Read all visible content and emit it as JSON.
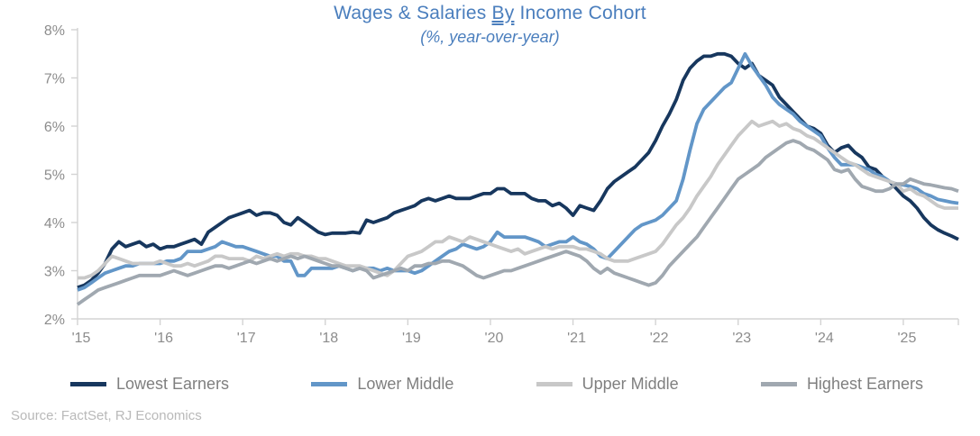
{
  "title": {
    "prefix": "Wages & Salaries ",
    "underlined": "By",
    "suffix": " Income Cohort"
  },
  "subtitle": "(%, year-over-year)",
  "source": "Source: FactSet, RJ Economics",
  "colors": {
    "title_text": "#4a7ebd",
    "axis_label": "#8c8c8c",
    "axis_line": "#d3d3d3",
    "legend_text": "#7f7f7f",
    "source_text": "#b9b9b9"
  },
  "chart_data": {
    "type": "line",
    "title": "Wages & Salaries By Income Cohort",
    "subtitle": "(%, year-over-year)",
    "x_start": "2015-01",
    "x_frequency": "monthly",
    "x_tick_labels": [
      "'15",
      "'16",
      "'17",
      "'18",
      "'19",
      "'20",
      "'21",
      "'22",
      "'23",
      "'24",
      "'25"
    ],
    "y_tick_labels": [
      "2%",
      "3%",
      "4%",
      "5%",
      "6%",
      "7%",
      "8%"
    ],
    "ylim": [
      2,
      8
    ],
    "grid": false,
    "legend_position": "bottom",
    "series": [
      {
        "name": "Lowest Earners",
        "color": "#17375e",
        "values": [
          2.65,
          2.7,
          2.8,
          2.95,
          3.15,
          3.45,
          3.6,
          3.5,
          3.55,
          3.6,
          3.5,
          3.55,
          3.45,
          3.5,
          3.5,
          3.55,
          3.6,
          3.65,
          3.55,
          3.8,
          3.9,
          4.0,
          4.1,
          4.15,
          4.2,
          4.25,
          4.15,
          4.2,
          4.2,
          4.15,
          4.0,
          3.95,
          4.1,
          4.0,
          3.9,
          3.8,
          3.75,
          3.78,
          3.78,
          3.78,
          3.8,
          3.78,
          4.05,
          4.0,
          4.05,
          4.1,
          4.2,
          4.25,
          4.3,
          4.35,
          4.45,
          4.5,
          4.45,
          4.5,
          4.55,
          4.5,
          4.5,
          4.5,
          4.55,
          4.6,
          4.6,
          4.7,
          4.7,
          4.6,
          4.6,
          4.6,
          4.5,
          4.45,
          4.45,
          4.35,
          4.4,
          4.3,
          4.15,
          4.35,
          4.3,
          4.25,
          4.45,
          4.7,
          4.85,
          4.95,
          5.05,
          5.15,
          5.3,
          5.45,
          5.7,
          6.0,
          6.25,
          6.55,
          6.95,
          7.2,
          7.35,
          7.45,
          7.45,
          7.5,
          7.5,
          7.45,
          7.3,
          7.2,
          7.3,
          7.05,
          6.95,
          6.85,
          6.6,
          6.45,
          6.3,
          6.15,
          6.0,
          5.95,
          5.85,
          5.6,
          5.45,
          5.55,
          5.6,
          5.45,
          5.35,
          5.15,
          5.1,
          4.95,
          4.85,
          4.7,
          4.55,
          4.45,
          4.3,
          4.1,
          3.95,
          3.85,
          3.78,
          3.72,
          3.65
        ]
      },
      {
        "name": "Lower Middle",
        "color": "#6296c8",
        "values": [
          2.6,
          2.65,
          2.75,
          2.85,
          2.95,
          3.0,
          3.05,
          3.1,
          3.1,
          3.15,
          3.15,
          3.15,
          3.15,
          3.2,
          3.2,
          3.25,
          3.4,
          3.4,
          3.4,
          3.45,
          3.5,
          3.6,
          3.55,
          3.5,
          3.5,
          3.45,
          3.4,
          3.35,
          3.3,
          3.3,
          3.2,
          3.2,
          2.9,
          2.9,
          3.05,
          3.05,
          3.05,
          3.05,
          3.1,
          3.05,
          3.0,
          3.05,
          3.05,
          3.05,
          3.0,
          3.05,
          3.0,
          3.0,
          3.0,
          2.95,
          3.0,
          3.1,
          3.2,
          3.3,
          3.4,
          3.45,
          3.55,
          3.5,
          3.45,
          3.5,
          3.6,
          3.8,
          3.7,
          3.7,
          3.7,
          3.7,
          3.65,
          3.6,
          3.5,
          3.55,
          3.6,
          3.6,
          3.7,
          3.6,
          3.55,
          3.45,
          3.3,
          3.25,
          3.4,
          3.55,
          3.7,
          3.85,
          3.95,
          4.0,
          4.05,
          4.15,
          4.3,
          4.45,
          4.9,
          5.5,
          6.05,
          6.35,
          6.5,
          6.65,
          6.8,
          6.9,
          7.2,
          7.5,
          7.25,
          7.05,
          6.85,
          6.6,
          6.45,
          6.35,
          6.25,
          6.1,
          6.0,
          5.9,
          5.8,
          5.55,
          5.35,
          5.2,
          5.2,
          5.2,
          5.15,
          5.1,
          5.0,
          4.95,
          4.85,
          4.8,
          4.78,
          4.75,
          4.7,
          4.6,
          4.55,
          4.48,
          4.45,
          4.42,
          4.4
        ]
      },
      {
        "name": "Upper Middle",
        "color": "#c8c8c8",
        "values": [
          2.85,
          2.85,
          2.9,
          3.0,
          3.15,
          3.3,
          3.25,
          3.2,
          3.15,
          3.15,
          3.15,
          3.15,
          3.2,
          3.15,
          3.1,
          3.1,
          3.15,
          3.1,
          3.15,
          3.2,
          3.3,
          3.3,
          3.25,
          3.25,
          3.25,
          3.2,
          3.3,
          3.25,
          3.3,
          3.35,
          3.3,
          3.35,
          3.35,
          3.3,
          3.3,
          3.25,
          3.25,
          3.2,
          3.15,
          3.1,
          3.1,
          3.1,
          3.05,
          3.0,
          2.95,
          2.9,
          3.0,
          3.15,
          3.3,
          3.35,
          3.4,
          3.5,
          3.6,
          3.6,
          3.7,
          3.65,
          3.6,
          3.7,
          3.65,
          3.6,
          3.55,
          3.5,
          3.45,
          3.4,
          3.45,
          3.35,
          3.4,
          3.45,
          3.5,
          3.45,
          3.5,
          3.5,
          3.5,
          3.45,
          3.45,
          3.4,
          3.35,
          3.25,
          3.2,
          3.2,
          3.2,
          3.25,
          3.3,
          3.35,
          3.4,
          3.55,
          3.75,
          3.95,
          4.1,
          4.3,
          4.55,
          4.75,
          4.95,
          5.2,
          5.4,
          5.6,
          5.8,
          5.95,
          6.1,
          6.0,
          6.05,
          6.1,
          6.0,
          6.05,
          5.95,
          5.9,
          5.8,
          5.75,
          5.65,
          5.55,
          5.45,
          5.35,
          5.25,
          5.2,
          5.1,
          5.0,
          4.95,
          4.9,
          4.85,
          4.8,
          4.65,
          4.7,
          4.6,
          4.55,
          4.45,
          4.35,
          4.3,
          4.3,
          4.3
        ]
      },
      {
        "name": "Highest Earners",
        "color": "#a0a8b0",
        "values": [
          2.3,
          2.4,
          2.5,
          2.6,
          2.65,
          2.7,
          2.75,
          2.8,
          2.85,
          2.9,
          2.9,
          2.9,
          2.9,
          2.95,
          3.0,
          2.95,
          2.9,
          2.95,
          3.0,
          3.05,
          3.1,
          3.1,
          3.05,
          3.1,
          3.15,
          3.2,
          3.15,
          3.2,
          3.25,
          3.2,
          3.25,
          3.3,
          3.25,
          3.3,
          3.25,
          3.2,
          3.15,
          3.1,
          3.1,
          3.05,
          3.0,
          3.05,
          3.0,
          2.85,
          2.9,
          2.95,
          3.0,
          3.05,
          3.0,
          3.1,
          3.1,
          3.15,
          3.15,
          3.2,
          3.2,
          3.15,
          3.1,
          3.0,
          2.9,
          2.85,
          2.9,
          2.95,
          3.0,
          3.0,
          3.05,
          3.1,
          3.15,
          3.2,
          3.25,
          3.3,
          3.35,
          3.4,
          3.35,
          3.3,
          3.2,
          3.05,
          2.95,
          3.05,
          2.95,
          2.9,
          2.85,
          2.8,
          2.75,
          2.7,
          2.75,
          2.9,
          3.1,
          3.25,
          3.4,
          3.55,
          3.7,
          3.9,
          4.1,
          4.3,
          4.5,
          4.7,
          4.9,
          5.0,
          5.1,
          5.2,
          5.35,
          5.45,
          5.55,
          5.65,
          5.7,
          5.65,
          5.55,
          5.5,
          5.4,
          5.3,
          5.1,
          5.05,
          5.1,
          4.9,
          4.75,
          4.7,
          4.65,
          4.65,
          4.7,
          4.8,
          4.8,
          4.9,
          4.85,
          4.8,
          4.78,
          4.75,
          4.72,
          4.7,
          4.65
        ]
      }
    ]
  }
}
